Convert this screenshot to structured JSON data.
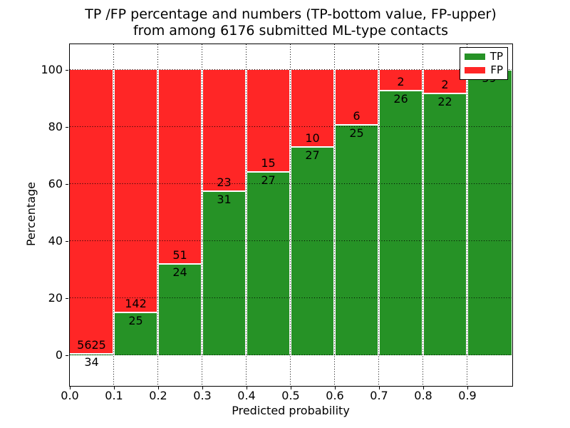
{
  "chart_data": {
    "type": "bar",
    "stacked": true,
    "title_line1": "TP /FP percentage and numbers (TP-bottom value, FP-upper)",
    "title_line2": "from among 6176 submitted ML-type contacts",
    "total_submitted": 6176,
    "xlabel": "Predicted probability",
    "ylabel": "Percentage",
    "x_bins": [
      "0.0-0.1",
      "0.1-0.2",
      "0.2-0.3",
      "0.3-0.4",
      "0.4-0.5",
      "0.5-0.6",
      "0.6-0.7",
      "0.7-0.8",
      "0.8-0.9",
      "0.9-1.0"
    ],
    "x_tick_labels": [
      "0.0",
      "0.1",
      "0.2",
      "0.3",
      "0.4",
      "0.5",
      "0.6",
      "0.7",
      "0.8",
      "0.9"
    ],
    "y_tick_labels": [
      "0",
      "20",
      "40",
      "60",
      "80",
      "100"
    ],
    "ylim": [
      0,
      100
    ],
    "grid": "dotted",
    "series": [
      {
        "name": "TP",
        "color": "#269226",
        "counts": [
          34,
          25,
          24,
          31,
          27,
          27,
          25,
          26,
          22,
          59
        ]
      },
      {
        "name": "FP",
        "color": "#ff2626",
        "counts": [
          5625,
          142,
          51,
          23,
          15,
          10,
          6,
          2,
          2,
          0
        ]
      }
    ],
    "tp_percent": [
      0.6,
      15.0,
      32.0,
      57.4,
      64.3,
      73.0,
      80.6,
      92.9,
      91.7,
      100.0
    ],
    "legend": {
      "position": "upper right",
      "entries": [
        "TP",
        "FP"
      ]
    }
  }
}
